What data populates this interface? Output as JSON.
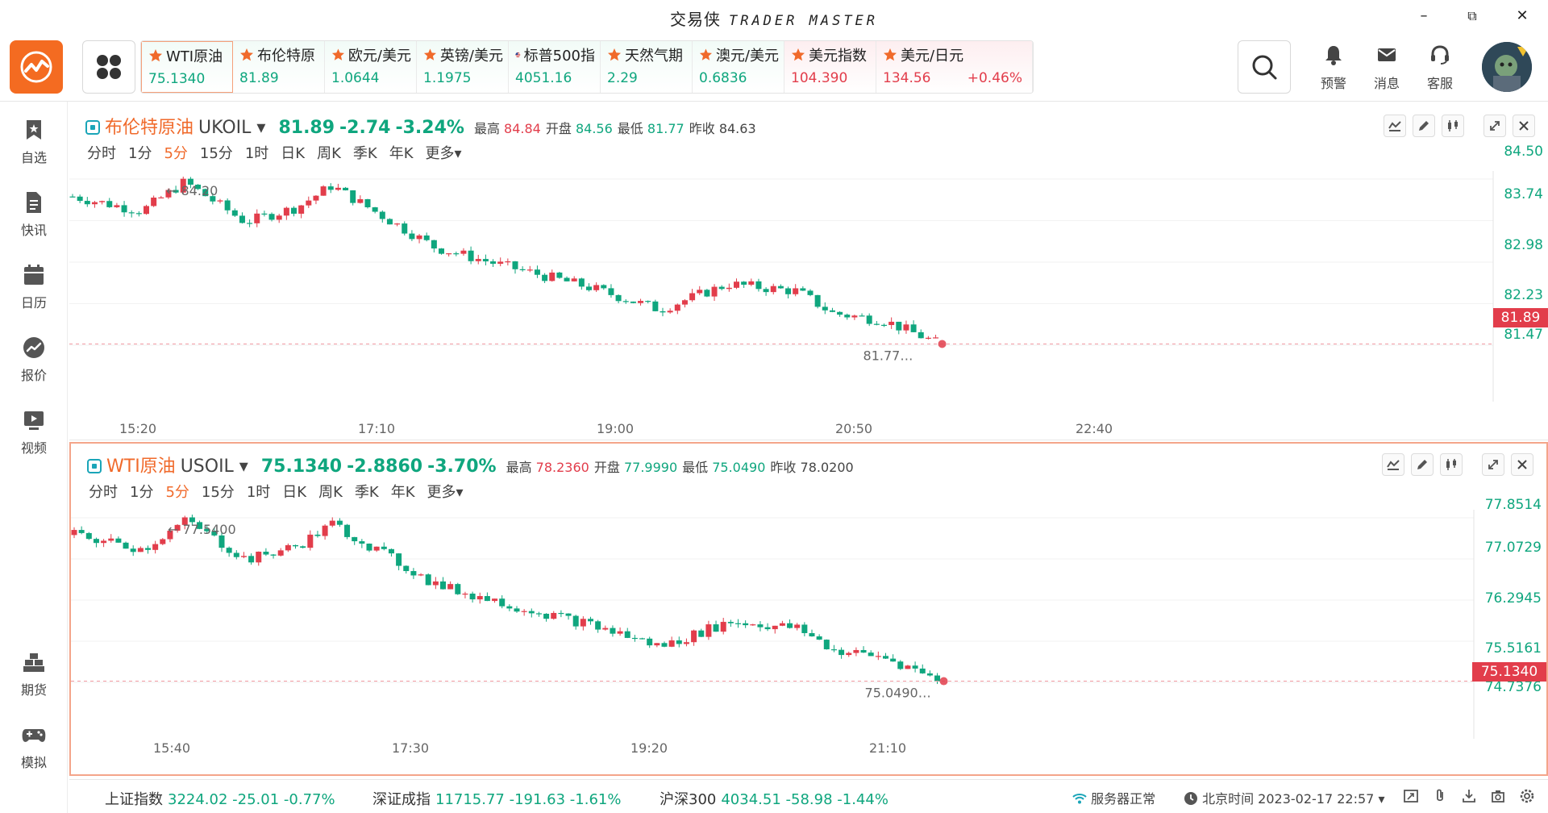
{
  "window": {
    "title_cn": "交易侠",
    "title_en": "TRADER MASTER",
    "minimize": "–",
    "restore": "⧉",
    "close": "✕"
  },
  "header": {
    "tickers": [
      {
        "name": "WTI原油",
        "price": "75.1340",
        "dir": "down"
      },
      {
        "name": "布伦特原",
        "price": "81.89",
        "dir": "down"
      },
      {
        "name": "欧元/美元",
        "price": "1.0644",
        "dir": "down"
      },
      {
        "name": "英镑/美元",
        "price": "1.1975",
        "dir": "down"
      },
      {
        "name": "标普500指",
        "price": "4051.16",
        "dir": "down",
        "flag": "us"
      },
      {
        "name": "天然气期",
        "price": "2.29",
        "dir": "down"
      },
      {
        "name": "澳元/美元",
        "price": "0.6836",
        "dir": "down"
      },
      {
        "name": "美元指数",
        "price": "104.390",
        "dir": "up"
      },
      {
        "name": "美元/日元",
        "price": "134.56",
        "change": "+0.46%",
        "dir": "up"
      }
    ],
    "actions": [
      {
        "label": "预警",
        "icon": "bell-icon"
      },
      {
        "label": "消息",
        "icon": "mail-icon"
      },
      {
        "label": "客服",
        "icon": "headset-icon"
      }
    ]
  },
  "sidebar": {
    "items": [
      {
        "label": "自选",
        "icon": "bookmark-icon"
      },
      {
        "label": "快讯",
        "icon": "document-icon"
      },
      {
        "label": "日历",
        "icon": "calendar-icon"
      },
      {
        "label": "报价",
        "icon": "trend-icon"
      },
      {
        "label": "视频",
        "icon": "video-icon"
      },
      {
        "label": "期货",
        "icon": "gold-bars-icon"
      },
      {
        "label": "模拟",
        "icon": "gamepad-icon"
      }
    ]
  },
  "periods": [
    "分时",
    "1分",
    "5分",
    "15分",
    "1时",
    "日K",
    "周K",
    "季K",
    "年K",
    "更多▾"
  ],
  "active_period": "5分",
  "charts": [
    {
      "name": "布伦特原油",
      "code": "UKOIL ▾",
      "last": "81.89",
      "change": "-2.74",
      "pct": "-3.24%",
      "high_label": "最高",
      "high": "84.84",
      "open_label": "开盘",
      "open": "84.56",
      "low_label": "最低",
      "low": "81.77",
      "prev_label": "昨收",
      "prev": "84.63",
      "price_axis": [
        "84.50",
        "83.74",
        "82.98",
        "82.23",
        "81.47"
      ],
      "price_tag": "81.89",
      "time_axis": [
        "15:20",
        "17:10",
        "19:00",
        "20:50",
        "22:40"
      ],
      "max_label": "84.20",
      "min_label": "81.77",
      "yrange": [
        81.3,
        84.6
      ]
    },
    {
      "name": "WTI原油",
      "code": "USOIL ▾",
      "last": "75.1340",
      "change": "-2.8860",
      "pct": "-3.70%",
      "high_label": "最高",
      "high": "78.2360",
      "open_label": "开盘",
      "open": "77.9990",
      "low_label": "最低",
      "low": "75.0490",
      "prev_label": "昨收",
      "prev": "78.0200",
      "price_axis": [
        "77.8514",
        "77.0729",
        "76.2945",
        "75.5161",
        "74.7376"
      ],
      "price_tag": "75.1340",
      "time_axis": [
        "15:40",
        "17:30",
        "19:20",
        "21:10"
      ],
      "max_label": "77.5400",
      "min_label": "75.0490",
      "yrange": [
        74.6,
        78.0
      ]
    }
  ],
  "statusbar": {
    "indices": [
      {
        "name": "上证指数",
        "value": "3224.02 -25.01 -0.77%"
      },
      {
        "name": "深证成指",
        "value": "11715.77 -191.63 -1.61%"
      },
      {
        "name": "沪深300",
        "value": "4034.51 -58.98 -1.44%"
      }
    ],
    "server": "服务器正常",
    "time": "北京时间 2023-02-17 22:57 ▾"
  },
  "colors": {
    "up": "#e23d4b",
    "down": "#0fa67e",
    "accent": "#f06a2b"
  }
}
